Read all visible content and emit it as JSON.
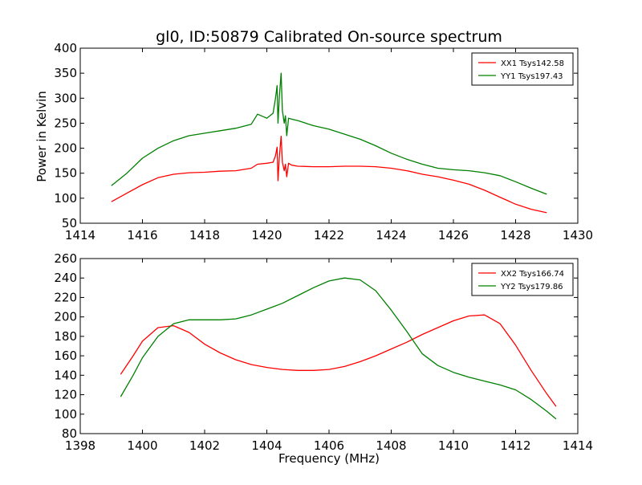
{
  "figure": {
    "title": "gl0, ID:50879 Calibrated On-source spectrum",
    "ylabel": "Power in Kelvin",
    "xlabel": "Frequency (MHz)"
  },
  "chart_data": [
    {
      "type": "line",
      "title": "gl0, ID:50879 Calibrated On-source spectrum",
      "xlabel": "",
      "ylabel": "Power in Kelvin",
      "xlim": [
        1414,
        1430
      ],
      "ylim": [
        50,
        400
      ],
      "xticks": [
        1414,
        1416,
        1418,
        1420,
        1422,
        1424,
        1426,
        1428,
        1430
      ],
      "yticks": [
        50,
        100,
        150,
        200,
        250,
        300,
        350,
        400
      ],
      "grid": false,
      "legend_position": "top-right",
      "series": [
        {
          "name": "XX1 Tsys142.58",
          "color": "#ff0000",
          "x": [
            1415.0,
            1415.5,
            1416.0,
            1416.5,
            1417.0,
            1417.5,
            1418.0,
            1418.5,
            1419.0,
            1419.5,
            1419.7,
            1420.0,
            1420.2,
            1420.28,
            1420.33,
            1420.36,
            1420.4,
            1420.46,
            1420.5,
            1420.56,
            1420.6,
            1420.64,
            1420.7,
            1420.8,
            1421.0,
            1421.5,
            1422.0,
            1422.5,
            1423.0,
            1423.5,
            1424.0,
            1424.5,
            1425.0,
            1425.5,
            1426.0,
            1426.5,
            1427.0,
            1427.5,
            1428.0,
            1428.5,
            1429.0
          ],
          "y": [
            93,
            110,
            127,
            141,
            148,
            151,
            152,
            154,
            155,
            160,
            168,
            170,
            172,
            185,
            202,
            135,
            180,
            224,
            172,
            155,
            168,
            143,
            170,
            166,
            164,
            163,
            163,
            164,
            164,
            163,
            160,
            155,
            148,
            143,
            136,
            128,
            116,
            102,
            88,
            78,
            71
          ]
        },
        {
          "name": "YY1 Tsys197.43",
          "color": "#008000",
          "x": [
            1415.0,
            1415.5,
            1416.0,
            1416.5,
            1417.0,
            1417.5,
            1418.0,
            1418.5,
            1419.0,
            1419.5,
            1419.7,
            1420.0,
            1420.2,
            1420.28,
            1420.33,
            1420.36,
            1420.4,
            1420.46,
            1420.5,
            1420.56,
            1420.6,
            1420.64,
            1420.7,
            1420.8,
            1421.0,
            1421.5,
            1422.0,
            1422.5,
            1423.0,
            1423.5,
            1424.0,
            1424.5,
            1425.0,
            1425.5,
            1426.0,
            1426.5,
            1427.0,
            1427.5,
            1428.0,
            1428.5,
            1429.0
          ],
          "y": [
            125,
            150,
            180,
            200,
            215,
            225,
            230,
            235,
            240,
            248,
            268,
            260,
            270,
            300,
            325,
            250,
            300,
            350,
            275,
            250,
            265,
            225,
            260,
            258,
            255,
            245,
            238,
            228,
            218,
            205,
            190,
            178,
            168,
            160,
            157,
            155,
            151,
            145,
            133,
            120,
            108
          ]
        }
      ]
    },
    {
      "type": "line",
      "title": "",
      "xlabel": "Frequency (MHz)",
      "ylabel": "",
      "xlim": [
        1398,
        1414
      ],
      "ylim": [
        80,
        260
      ],
      "xticks": [
        1398,
        1400,
        1402,
        1404,
        1406,
        1408,
        1410,
        1412,
        1414
      ],
      "yticks": [
        80,
        100,
        120,
        140,
        160,
        180,
        200,
        220,
        240,
        260
      ],
      "grid": false,
      "legend_position": "top-right",
      "series": [
        {
          "name": "XX2 Tsys166.74",
          "color": "#ff0000",
          "x": [
            1399.3,
            1399.7,
            1400.0,
            1400.5,
            1401.0,
            1401.5,
            1402.0,
            1402.5,
            1403.0,
            1403.5,
            1404.0,
            1404.5,
            1405.0,
            1405.5,
            1406.0,
            1406.5,
            1407.0,
            1407.5,
            1408.0,
            1408.5,
            1409.0,
            1409.5,
            1410.0,
            1410.5,
            1411.0,
            1411.5,
            1412.0,
            1412.5,
            1413.0,
            1413.3
          ],
          "y": [
            141,
            160,
            175,
            189,
            191,
            184,
            172,
            163,
            156,
            151,
            148,
            146,
            145,
            145,
            146,
            149,
            154,
            160,
            167,
            174,
            182,
            189,
            196,
            201,
            202,
            193,
            171,
            145,
            121,
            108
          ]
        },
        {
          "name": "YY2 Tsys179.86",
          "color": "#008000",
          "x": [
            1399.3,
            1399.7,
            1400.0,
            1400.5,
            1401.0,
            1401.5,
            1402.0,
            1402.5,
            1403.0,
            1403.5,
            1404.0,
            1404.5,
            1405.0,
            1405.5,
            1406.0,
            1406.5,
            1407.0,
            1407.5,
            1408.0,
            1408.5,
            1409.0,
            1409.5,
            1410.0,
            1410.5,
            1411.0,
            1411.5,
            1412.0,
            1412.5,
            1413.0,
            1413.3
          ],
          "y": [
            118,
            140,
            158,
            180,
            193,
            197,
            197,
            197,
            198,
            202,
            208,
            214,
            222,
            230,
            237,
            240,
            238,
            227,
            207,
            185,
            162,
            150,
            143,
            138,
            134,
            130,
            125,
            115,
            103,
            95
          ]
        }
      ]
    }
  ]
}
